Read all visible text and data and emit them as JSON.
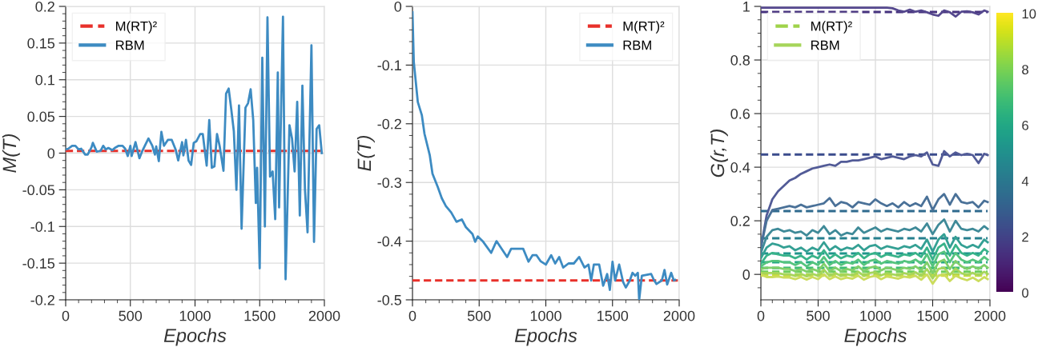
{
  "chart_data": [
    {
      "type": "line",
      "xlabel": "Epochs",
      "ylabel": "M(T)",
      "xlim": [
        0,
        2000
      ],
      "xticks": [
        0,
        500,
        1000,
        1500,
        2000
      ],
      "ylim": [
        -0.2,
        0.2
      ],
      "yticks": [
        -0.2,
        -0.15,
        -0.1,
        -0.05,
        0,
        0.05,
        0.1,
        0.15,
        0.2
      ],
      "grid": true,
      "legend": "top left",
      "series": [
        {
          "name": "M(RT)²",
          "color": "#e8302a",
          "line_style": "dashed",
          "x": [
            0,
            1990
          ],
          "values": [
            0.003,
            0.003
          ]
        },
        {
          "name": "RBM",
          "color": "#3d8bc2",
          "x": [
            0,
            20,
            50,
            75,
            100,
            120,
            150,
            170,
            200,
            210,
            240,
            270,
            290,
            310,
            330,
            360,
            380,
            410,
            440,
            460,
            480,
            500,
            510,
            540,
            570,
            590,
            640,
            670,
            690,
            700,
            720,
            740,
            760,
            790,
            820,
            850,
            870,
            900,
            910,
            930,
            950,
            970,
            990,
            1010,
            1040,
            1060,
            1090,
            1110,
            1130,
            1150,
            1170,
            1190,
            1220,
            1240,
            1260,
            1280,
            1300,
            1320,
            1340,
            1360,
            1390,
            1410,
            1430,
            1450,
            1470,
            1480,
            1500,
            1520,
            1540,
            1560,
            1580,
            1600,
            1620,
            1640,
            1650,
            1680,
            1700,
            1730,
            1750,
            1770,
            1790,
            1810,
            1830,
            1850,
            1870,
            1900,
            1920,
            1940,
            1960,
            1980
          ],
          "values": [
            0.005,
            0.006,
            0.01,
            0.01,
            0.005,
            0.006,
            -0.002,
            -0.002,
            0.008,
            0.014,
            0.002,
            0.003,
            0.01,
            0.005,
            0.007,
            0.004,
            0.007,
            0.01,
            0.01,
            0.006,
            -0.004,
            0.01,
            -0.004,
            0.015,
            -0.007,
            0.002,
            0.02,
            0.01,
            -0.002,
            0.009,
            -0.011,
            0.029,
            0.01,
            0.018,
            0.018,
            0.005,
            -0.01,
            0.015,
            -0.003,
            0.018,
            -0.01,
            -0.016,
            0.014,
            0.016,
            0.026,
            0.026,
            -0.017,
            0.045,
            -0.02,
            -0.018,
            0.026,
            0.01,
            -0.024,
            0.081,
            0.088,
            0.06,
            0.03,
            -0.05,
            0.065,
            -0.103,
            0.062,
            0.068,
            0.087,
            0.045,
            -0.068,
            -0.02,
            -0.157,
            0.13,
            -0.1,
            0.185,
            -0.032,
            -0.025,
            -0.09,
            0.11,
            -0.074,
            0.186,
            -0.172,
            0.038,
            0.02,
            -0.025,
            0.07,
            -0.085,
            0.092,
            -0.05,
            -0.108,
            0.147,
            -0.121,
            0.033,
            0.038,
            0.0
          ]
        }
      ]
    },
    {
      "type": "line",
      "xlabel": "Epochs",
      "ylabel": "E(T)",
      "xlim": [
        0,
        2000
      ],
      "xticks": [
        0,
        500,
        1000,
        1500,
        2000
      ],
      "ylim": [
        -0.5,
        0
      ],
      "yticks": [
        -0.5,
        -0.4,
        -0.3,
        -0.2,
        -0.1,
        0
      ],
      "grid": true,
      "legend": "top right",
      "series": [
        {
          "name": "M(RT)²",
          "color": "#e8302a",
          "line_style": "dashed",
          "x": [
            0,
            1990
          ],
          "values": [
            -0.467,
            -0.467
          ]
        },
        {
          "name": "RBM",
          "color": "#3d8bc2",
          "x": [
            0,
            10,
            40,
            70,
            90,
            130,
            150,
            190,
            220,
            250,
            290,
            330,
            370,
            400,
            450,
            470,
            490,
            530,
            590,
            630,
            710,
            740,
            790,
            830,
            870,
            900,
            930,
            960,
            1000,
            1040,
            1070,
            1100,
            1130,
            1170,
            1210,
            1250,
            1290,
            1320,
            1340,
            1360,
            1400,
            1430,
            1460,
            1480,
            1500,
            1520,
            1550,
            1580,
            1600,
            1630,
            1650,
            1670,
            1690,
            1700,
            1720,
            1790,
            1810,
            1830,
            1870,
            1890,
            1910,
            1940,
            1960,
            1970
          ],
          "values": [
            -0.01,
            -0.095,
            -0.163,
            -0.185,
            -0.217,
            -0.254,
            -0.285,
            -0.308,
            -0.327,
            -0.34,
            -0.351,
            -0.367,
            -0.363,
            -0.376,
            -0.388,
            -0.401,
            -0.392,
            -0.401,
            -0.42,
            -0.4,
            -0.427,
            -0.413,
            -0.413,
            -0.413,
            -0.435,
            -0.424,
            -0.424,
            -0.434,
            -0.44,
            -0.424,
            -0.438,
            -0.427,
            -0.445,
            -0.438,
            -0.438,
            -0.427,
            -0.445,
            -0.44,
            -0.467,
            -0.44,
            -0.44,
            -0.476,
            -0.456,
            -0.483,
            -0.435,
            -0.467,
            -0.44,
            -0.47,
            -0.479,
            -0.467,
            -0.454,
            -0.459,
            -0.454,
            -0.5,
            -0.459,
            -0.456,
            -0.466,
            -0.473,
            -0.467,
            -0.449,
            -0.474,
            -0.454,
            -0.467,
            -0.466
          ]
        }
      ]
    },
    {
      "type": "line",
      "xlabel": "Epochs",
      "ylabel": "G(r,T)",
      "xlim": [
        0,
        2000
      ],
      "xticks": [
        0,
        500,
        1000,
        1500,
        2000
      ],
      "ylim": [
        -0.095,
        1
      ],
      "yticks": [
        0,
        0.2,
        0.4,
        0.6,
        0.8,
        1
      ],
      "grid": true,
      "legend": "top left",
      "clim": [
        0,
        10
      ],
      "cticks": [
        0,
        2,
        4,
        6,
        8,
        10
      ],
      "x": [
        0,
        50,
        100,
        150,
        200,
        250,
        300,
        350,
        400,
        450,
        500,
        550,
        600,
        650,
        700,
        750,
        800,
        850,
        900,
        950,
        1000,
        1050,
        1100,
        1150,
        1200,
        1250,
        1300,
        1350,
        1400,
        1450,
        1500,
        1550,
        1600,
        1650,
        1700,
        1750,
        1800,
        1850,
        1900,
        1950,
        1980
      ],
      "series": [
        {
          "color": "#46327e",
          "line_style": "dashed",
          "x": [
            0,
            1980
          ],
          "values": [
            0.979,
            0.979
          ]
        },
        {
          "color": "#3b4c8c",
          "line_style": "dashed",
          "x": [
            0,
            1980
          ],
          "values": [
            0.447,
            0.447
          ]
        },
        {
          "color": "#2f6a8e",
          "line_style": "dashed",
          "x": [
            0,
            1980
          ],
          "values": [
            0.236,
            0.236
          ]
        },
        {
          "color": "#27808e",
          "line_style": "dashed",
          "x": [
            0,
            1980
          ],
          "values": [
            0.135,
            0.135
          ]
        },
        {
          "color": "#1f958b",
          "line_style": "dashed",
          "x": [
            0,
            1980
          ],
          "values": [
            0.078,
            0.078
          ]
        },
        {
          "color": "#23a983",
          "line_style": "dashed",
          "x": [
            0,
            1980
          ],
          "values": [
            0.045,
            0.045
          ]
        },
        {
          "color": "#3fbc73",
          "line_style": "dashed",
          "x": [
            0,
            1980
          ],
          "values": [
            0.024,
            0.024
          ]
        },
        {
          "color": "#6ccd5a",
          "line_style": "dashed",
          "x": [
            0,
            1980
          ],
          "values": [
            0.01,
            0.01
          ]
        },
        {
          "name": "M(RT)²",
          "color": "#9fd34a",
          "line_style": "dashed",
          "x": [
            0,
            1980
          ],
          "values": [
            0.0,
            0.0
          ]
        },
        {
          "color": "#cddc3e",
          "line_style": "dashed",
          "x": [
            0,
            1980
          ],
          "values": [
            -0.005,
            -0.005
          ]
        },
        {
          "color": "#55488e",
          "values": [
            0.995,
            0.995,
            0.995,
            0.995,
            0.995,
            0.995,
            0.995,
            0.995,
            0.995,
            0.995,
            0.995,
            0.995,
            0.995,
            0.995,
            0.995,
            0.995,
            0.995,
            0.995,
            0.995,
            0.995,
            0.995,
            0.995,
            0.995,
            0.993,
            0.985,
            0.98,
            0.988,
            0.98,
            0.985,
            0.978,
            0.97,
            0.965,
            0.985,
            0.978,
            0.962,
            0.98,
            0.982,
            0.978,
            0.97,
            0.985,
            0.98
          ]
        },
        {
          "color": "#525b97",
          "values": [
            0.1,
            0.22,
            0.28,
            0.31,
            0.33,
            0.35,
            0.36,
            0.375,
            0.385,
            0.395,
            0.4,
            0.405,
            0.41,
            0.405,
            0.42,
            0.42,
            0.425,
            0.425,
            0.43,
            0.435,
            0.44,
            0.43,
            0.435,
            0.44,
            0.435,
            0.43,
            0.44,
            0.445,
            0.44,
            0.455,
            0.41,
            0.405,
            0.46,
            0.44,
            0.455,
            0.445,
            0.45,
            0.445,
            0.415,
            0.45,
            0.445
          ]
        },
        {
          "color": "#4a7198",
          "values": [
            0.1,
            0.2,
            0.24,
            0.245,
            0.25,
            0.255,
            0.25,
            0.26,
            0.25,
            0.255,
            0.26,
            0.265,
            0.285,
            0.255,
            0.27,
            0.265,
            0.25,
            0.27,
            0.265,
            0.26,
            0.28,
            0.265,
            0.255,
            0.265,
            0.25,
            0.27,
            0.255,
            0.265,
            0.255,
            0.29,
            0.24,
            0.28,
            0.3,
            0.26,
            0.3,
            0.27,
            0.265,
            0.27,
            0.25,
            0.275,
            0.27
          ]
        },
        {
          "color": "#3f8a98",
          "values": [
            0.08,
            0.14,
            0.165,
            0.17,
            0.16,
            0.165,
            0.155,
            0.16,
            0.145,
            0.165,
            0.155,
            0.18,
            0.15,
            0.165,
            0.145,
            0.155,
            0.15,
            0.175,
            0.155,
            0.165,
            0.175,
            0.16,
            0.17,
            0.165,
            0.16,
            0.17,
            0.165,
            0.175,
            0.16,
            0.19,
            0.15,
            0.185,
            0.205,
            0.16,
            0.2,
            0.17,
            0.165,
            0.17,
            0.16,
            0.18,
            0.17
          ]
        },
        {
          "color": "#34a094",
          "values": [
            0.06,
            0.1,
            0.115,
            0.11,
            0.1,
            0.105,
            0.09,
            0.1,
            0.085,
            0.1,
            0.09,
            0.12,
            0.09,
            0.105,
            0.09,
            0.1,
            0.095,
            0.11,
            0.09,
            0.105,
            0.11,
            0.095,
            0.105,
            0.1,
            0.095,
            0.105,
            0.1,
            0.11,
            0.095,
            0.13,
            0.085,
            0.13,
            0.15,
            0.1,
            0.14,
            0.11,
            0.1,
            0.11,
            0.1,
            0.13,
            0.12
          ]
        },
        {
          "color": "#38b38a",
          "values": [
            0.04,
            0.07,
            0.08,
            0.075,
            0.07,
            0.07,
            0.06,
            0.07,
            0.055,
            0.07,
            0.06,
            0.09,
            0.06,
            0.075,
            0.06,
            0.07,
            0.065,
            0.08,
            0.06,
            0.075,
            0.08,
            0.065,
            0.075,
            0.07,
            0.065,
            0.075,
            0.07,
            0.08,
            0.065,
            0.1,
            0.055,
            0.1,
            0.115,
            0.07,
            0.11,
            0.08,
            0.07,
            0.08,
            0.07,
            0.095,
            0.085
          ]
        },
        {
          "color": "#55c47e",
          "values": [
            0.03,
            0.045,
            0.05,
            0.05,
            0.045,
            0.045,
            0.035,
            0.045,
            0.03,
            0.045,
            0.035,
            0.065,
            0.035,
            0.05,
            0.035,
            0.045,
            0.04,
            0.055,
            0.035,
            0.05,
            0.055,
            0.04,
            0.05,
            0.045,
            0.04,
            0.05,
            0.045,
            0.055,
            0.04,
            0.075,
            0.03,
            0.075,
            0.085,
            0.045,
            0.08,
            0.055,
            0.045,
            0.055,
            0.045,
            0.065,
            0.055
          ]
        },
        {
          "color": "#80cf6a",
          "values": [
            0.02,
            0.025,
            0.025,
            0.025,
            0.02,
            0.02,
            0.012,
            0.02,
            0.01,
            0.02,
            0.012,
            0.04,
            0.012,
            0.025,
            0.012,
            0.02,
            0.015,
            0.03,
            0.012,
            0.025,
            0.03,
            0.015,
            0.025,
            0.02,
            0.015,
            0.025,
            0.02,
            0.03,
            0.015,
            0.045,
            0.005,
            0.045,
            0.055,
            0.02,
            0.05,
            0.03,
            0.02,
            0.03,
            0.02,
            0.035,
            0.025
          ]
        },
        {
          "name": "RBM",
          "color": "#a6d55a",
          "values": [
            0.005,
            0.005,
            0.005,
            0.005,
            0.0,
            0.0,
            -0.006,
            0.002,
            -0.008,
            0.002,
            -0.006,
            0.018,
            -0.006,
            0.005,
            -0.006,
            0.0,
            -0.004,
            0.01,
            -0.006,
            0.005,
            0.008,
            -0.004,
            0.005,
            0.0,
            -0.004,
            0.005,
            0.0,
            0.008,
            -0.006,
            0.02,
            -0.015,
            0.02,
            0.025,
            -0.002,
            0.022,
            0.005,
            -0.002,
            0.006,
            -0.004,
            0.01,
            0.002
          ]
        },
        {
          "color": "#cbdc5c",
          "values": [
            0.0,
            -0.01,
            -0.01,
            -0.008,
            -0.012,
            -0.012,
            -0.018,
            -0.01,
            -0.02,
            -0.01,
            -0.018,
            0.0,
            -0.018,
            -0.008,
            -0.018,
            -0.012,
            -0.016,
            -0.005,
            -0.02,
            -0.01,
            -0.005,
            -0.018,
            -0.008,
            -0.012,
            -0.016,
            -0.008,
            -0.012,
            -0.005,
            -0.02,
            0.0,
            -0.035,
            -0.005,
            0.0,
            -0.025,
            -0.005,
            -0.015,
            -0.022,
            -0.012,
            -0.025,
            -0.01,
            -0.018
          ]
        }
      ]
    }
  ]
}
